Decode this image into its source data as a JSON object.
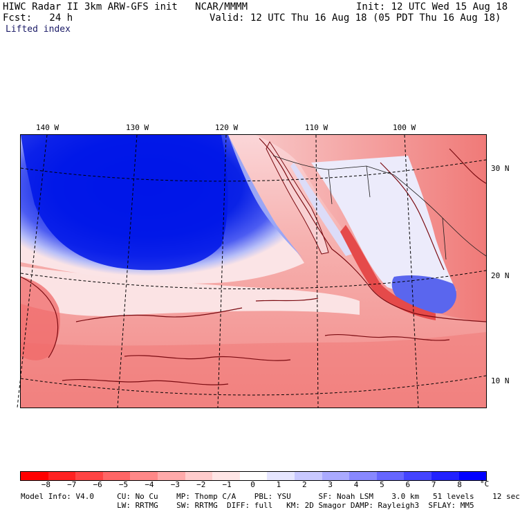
{
  "header": {
    "title": "HIWC Radar II 3km ARW-GFS init   NCAR/MMMM",
    "init": "Init: 12 UTC Wed 15 Aug 18",
    "fcst_label": "Fcst:   24 h",
    "valid": "Valid: 12 UTC Thu 16 Aug 18 (05 PDT Thu 16 Aug 18)",
    "field": "Lifted index"
  },
  "map": {
    "lon_labels": [
      "140 W",
      "130 W",
      "120 W",
      "110 W",
      "100 W"
    ],
    "lat_labels": [
      "30 N",
      "20 N",
      "10 N"
    ],
    "ocean_unstable_color": "#0016e8",
    "land_outline_color": "#7a0a10",
    "stable_color": "#f4a6a2"
  },
  "colorbar": {
    "colors": [
      "#ff0000",
      "#ff2222",
      "#ff4444",
      "#ff6666",
      "#ff8888",
      "#ffaaaa",
      "#ffcccc",
      "#ffe6e6",
      "#ffffff",
      "#e6e6ff",
      "#c8c8ff",
      "#aaaaff",
      "#8888ff",
      "#6666ff",
      "#4444ff",
      "#2222ff",
      "#0000ff"
    ],
    "ticks": [
      "−8",
      "−7",
      "−6",
      "−5",
      "−4",
      "−3",
      "−2",
      "−1",
      "0",
      "1",
      "2",
      "3",
      "4",
      "5",
      "6",
      "7",
      "8"
    ],
    "unit": "°C"
  },
  "model_info": {
    "line1": "Model Info: V4.0     CU: No Cu    MP: Thomp C/A    PBL: YSU      SF: Noah LSM    3.0 km   51 levels    12 sec",
    "line2": "                     LW: RRTMG    SW: RRTMG  DIFF: full   KM: 2D Smagor DAMP: Rayleigh3  SFLAY: MM5"
  }
}
